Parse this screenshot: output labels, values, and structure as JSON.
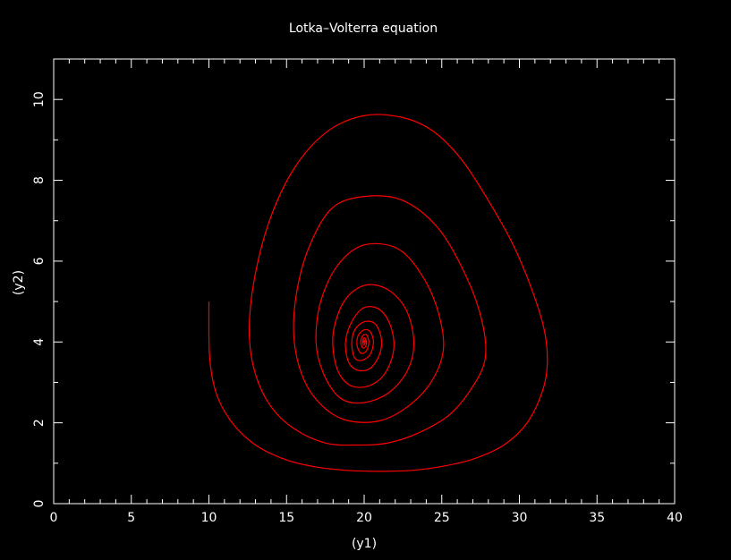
{
  "chart_data": {
    "type": "line",
    "title": "Lotka–Volterra equation",
    "xlabel": "(y1)",
    "ylabel": "(y2)",
    "xlim": [
      0,
      40
    ],
    "ylim": [
      0,
      11
    ],
    "xticks": [
      0,
      5,
      10,
      15,
      20,
      25,
      30,
      35,
      40
    ],
    "yticks": [
      0,
      2,
      4,
      6,
      8,
      10
    ],
    "grid": false,
    "background_color": "#000000",
    "axis_color": "#ffffff",
    "series": [
      {
        "color": "#ff0000",
        "points": [
          [
            10.0,
            5.0
          ],
          [
            10.05,
            3.6
          ],
          [
            10.5,
            2.7
          ],
          [
            11.5,
            2.0
          ],
          [
            13.0,
            1.45
          ],
          [
            15.0,
            1.08
          ],
          [
            17.0,
            0.9
          ],
          [
            19.0,
            0.82
          ],
          [
            21.0,
            0.8
          ],
          [
            23.0,
            0.82
          ],
          [
            25.0,
            0.92
          ],
          [
            27.0,
            1.1
          ],
          [
            29.0,
            1.45
          ],
          [
            30.5,
            2.0
          ],
          [
            31.5,
            2.8
          ],
          [
            31.8,
            3.5
          ],
          [
            31.6,
            4.3
          ],
          [
            30.8,
            5.3
          ],
          [
            29.6,
            6.4
          ],
          [
            28.0,
            7.5
          ],
          [
            26.3,
            8.5
          ],
          [
            24.5,
            9.2
          ],
          [
            22.5,
            9.55
          ],
          [
            20.0,
            9.6
          ],
          [
            17.6,
            9.2
          ],
          [
            15.5,
            8.3
          ],
          [
            13.9,
            7.0
          ],
          [
            12.9,
            5.5
          ],
          [
            12.6,
            4.2
          ],
          [
            13.0,
            3.2
          ],
          [
            14.0,
            2.4
          ],
          [
            15.5,
            1.85
          ],
          [
            17.5,
            1.5
          ],
          [
            19.5,
            1.45
          ],
          [
            21.5,
            1.5
          ],
          [
            23.5,
            1.75
          ],
          [
            25.5,
            2.2
          ],
          [
            27.0,
            2.9
          ],
          [
            27.8,
            3.6
          ],
          [
            27.6,
            4.5
          ],
          [
            26.6,
            5.6
          ],
          [
            24.8,
            6.8
          ],
          [
            22.5,
            7.5
          ],
          [
            20.0,
            7.6
          ],
          [
            17.9,
            7.3
          ],
          [
            16.4,
            6.3
          ],
          [
            15.6,
            5.1
          ],
          [
            15.5,
            4.0
          ],
          [
            16.2,
            3.0
          ],
          [
            17.5,
            2.35
          ],
          [
            19.0,
            2.05
          ],
          [
            21.0,
            2.05
          ],
          [
            22.8,
            2.4
          ],
          [
            24.3,
            3.0
          ],
          [
            25.1,
            3.8
          ],
          [
            24.8,
            4.7
          ],
          [
            23.8,
            5.6
          ],
          [
            22.2,
            6.3
          ],
          [
            20.0,
            6.4
          ],
          [
            18.3,
            5.9
          ],
          [
            17.2,
            5.0
          ],
          [
            16.9,
            4.0
          ],
          [
            17.4,
            3.2
          ],
          [
            18.5,
            2.6
          ],
          [
            20.0,
            2.5
          ],
          [
            21.6,
            2.75
          ],
          [
            22.8,
            3.3
          ],
          [
            23.2,
            4.0
          ],
          [
            22.7,
            4.8
          ],
          [
            21.5,
            5.3
          ],
          [
            20.0,
            5.4
          ],
          [
            18.7,
            5.0
          ],
          [
            18.0,
            4.2
          ],
          [
            18.2,
            3.4
          ],
          [
            19.0,
            2.95
          ],
          [
            20.2,
            2.9
          ],
          [
            21.3,
            3.2
          ],
          [
            21.9,
            3.8
          ],
          [
            21.7,
            4.4
          ],
          [
            21.0,
            4.8
          ],
          [
            20.0,
            4.85
          ],
          [
            19.2,
            4.5
          ],
          [
            18.8,
            4.0
          ],
          [
            19.0,
            3.5
          ],
          [
            19.6,
            3.3
          ],
          [
            20.4,
            3.35
          ],
          [
            21.0,
            3.7
          ],
          [
            21.1,
            4.1
          ],
          [
            20.7,
            4.45
          ],
          [
            20.0,
            4.5
          ],
          [
            19.4,
            4.3
          ],
          [
            19.2,
            3.95
          ],
          [
            19.4,
            3.6
          ],
          [
            19.9,
            3.55
          ],
          [
            20.4,
            3.7
          ],
          [
            20.6,
            4.0
          ],
          [
            20.4,
            4.25
          ],
          [
            20.0,
            4.3
          ],
          [
            19.6,
            4.15
          ],
          [
            19.55,
            3.9
          ],
          [
            19.8,
            3.72
          ],
          [
            20.15,
            3.78
          ],
          [
            20.3,
            4.0
          ],
          [
            20.15,
            4.18
          ],
          [
            19.9,
            4.15
          ],
          [
            19.78,
            4.0
          ],
          [
            19.9,
            3.86
          ],
          [
            20.08,
            3.88
          ],
          [
            20.15,
            4.0
          ],
          [
            20.05,
            4.1
          ],
          [
            19.92,
            4.05
          ],
          [
            19.92,
            3.95
          ],
          [
            20.03,
            3.94
          ],
          [
            20.07,
            4.02
          ],
          [
            20.0,
            4.04
          ],
          [
            19.97,
            4.0
          ],
          [
            20.0,
            3.98
          ],
          [
            20.02,
            4.0
          ],
          [
            20.0,
            4.0
          ]
        ]
      }
    ]
  }
}
